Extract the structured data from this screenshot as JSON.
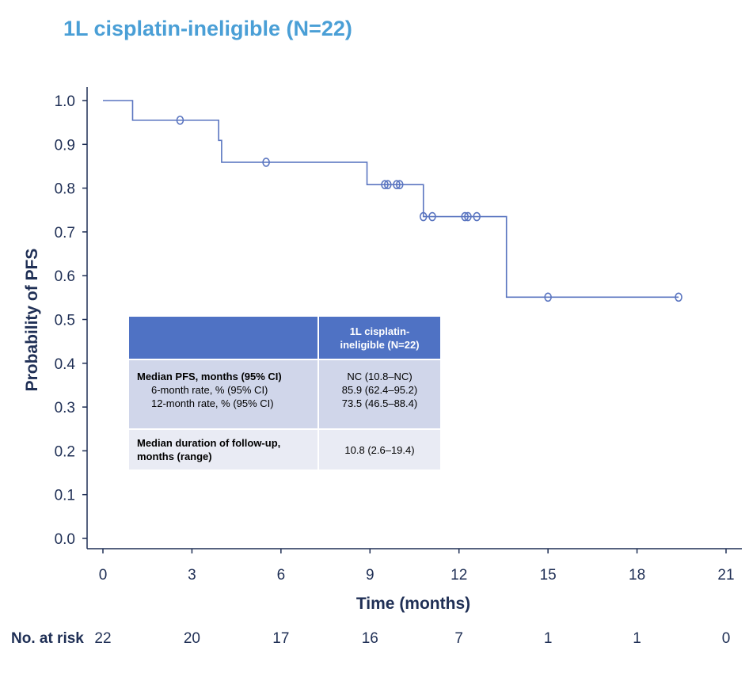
{
  "title": "1L cisplatin-ineligible (N=22)",
  "chart_data": {
    "type": "line",
    "title": "1L cisplatin-ineligible (N=22)",
    "xlabel": "Time (months)",
    "ylabel": "Probability of PFS",
    "xlim": [
      0,
      21
    ],
    "ylim": [
      0,
      1
    ],
    "xticks": [
      0,
      3,
      6,
      9,
      12,
      15,
      18,
      21
    ],
    "yticks": [
      "0.0",
      "0.1",
      "0.2",
      "0.3",
      "0.4",
      "0.5",
      "0.6",
      "0.7",
      "0.8",
      "0.9",
      "1.0"
    ],
    "series": [
      {
        "step_curve": [
          {
            "x": 0,
            "y": 1.0
          },
          {
            "x": 1.0,
            "y": 0.955
          },
          {
            "x": 3.9,
            "y": 0.909
          },
          {
            "x": 4.0,
            "y": 0.859
          },
          {
            "x": 8.9,
            "y": 0.808
          },
          {
            "x": 10.8,
            "y": 0.735
          },
          {
            "x": 13.6,
            "y": 0.551
          },
          {
            "x": 19.4,
            "y": 0.551
          }
        ],
        "censored": [
          {
            "x": 2.6,
            "y": 0.955
          },
          {
            "x": 5.5,
            "y": 0.859
          },
          {
            "x": 9.5,
            "y": 0.808
          },
          {
            "x": 9.6,
            "y": 0.808
          },
          {
            "x": 9.9,
            "y": 0.808
          },
          {
            "x": 10.0,
            "y": 0.808
          },
          {
            "x": 10.8,
            "y": 0.735
          },
          {
            "x": 11.1,
            "y": 0.735
          },
          {
            "x": 12.2,
            "y": 0.735
          },
          {
            "x": 12.3,
            "y": 0.735
          },
          {
            "x": 12.6,
            "y": 0.735
          },
          {
            "x": 15.0,
            "y": 0.551
          },
          {
            "x": 19.4,
            "y": 0.551
          }
        ],
        "color": "#5a75c0"
      }
    ],
    "risk_table": {
      "label": "No. at risk",
      "times": [
        0,
        3,
        6,
        9,
        12,
        15,
        18,
        21
      ],
      "counts": [
        "22",
        "20",
        "17",
        "16",
        "7",
        "1",
        "1",
        "0"
      ]
    }
  },
  "table": {
    "header": "1L cisplatin-\nineligible (N=22)",
    "row1_label_main": "Median PFS, months (95% CI)",
    "row1_label_sub1": "6-month rate, % (95% CI)",
    "row1_label_sub2": "12-month rate, % (95% CI)",
    "row1_val1": "NC (10.8–NC)",
    "row1_val2": "85.9 (62.4–95.2)",
    "row1_val3": "73.5 (46.5–88.4)",
    "row2_label": "Median duration of follow-up, months (range)",
    "row2_value": "10.8 (2.6–19.4)"
  }
}
